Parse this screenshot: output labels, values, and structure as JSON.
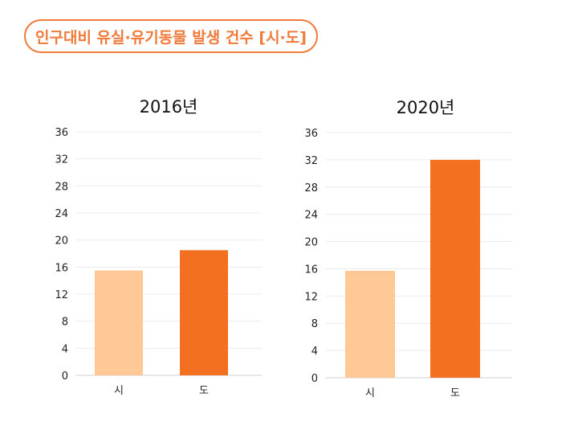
{
  "title": "인구대비 유실·유기동물 발생 건수 [시·도]",
  "colors": {
    "accent": "#f07a3a",
    "si": "#ffc896",
    "do": "#f37021"
  },
  "chart_data": [
    {
      "type": "bar",
      "title": "2016년",
      "categories": [
        "시",
        "도"
      ],
      "values": [
        15.5,
        18.5
      ],
      "yticks": [
        "0",
        "4",
        "8",
        "12",
        "16",
        "20",
        "24",
        "28",
        "32",
        "36"
      ],
      "ylim": [
        0,
        36
      ],
      "grid": true
    },
    {
      "type": "bar",
      "title": "2020년",
      "categories": [
        "시",
        "도"
      ],
      "values": [
        15.7,
        32.0
      ],
      "yticks": [
        "0",
        "4",
        "8",
        "12",
        "16",
        "20",
        "24",
        "28",
        "32",
        "36"
      ],
      "ylim": [
        0,
        36
      ],
      "grid": true
    }
  ]
}
